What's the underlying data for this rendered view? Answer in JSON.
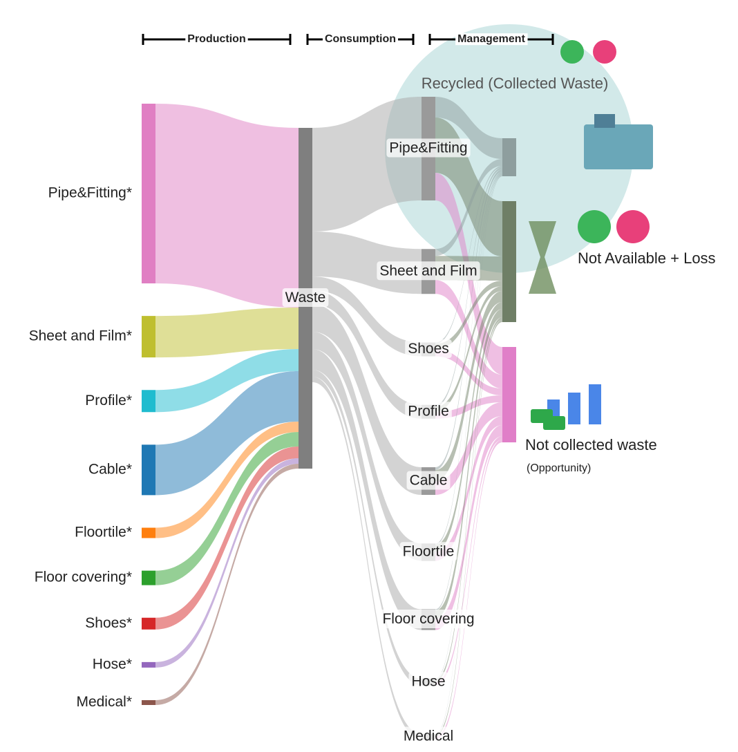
{
  "chart_data": {
    "type": "sankey",
    "stages": [
      "Production",
      "Consumption",
      "Management"
    ],
    "nodes": [
      {
        "name": "Pipe&Fitting*",
        "color": "#e07fc3"
      },
      {
        "name": "Sheet and Film*",
        "color": "#bfbf2f"
      },
      {
        "name": "Profile*",
        "color": "#1fbccf"
      },
      {
        "name": "Cable*",
        "color": "#1f78b4"
      },
      {
        "name": "Floortile*",
        "color": "#ff7f0e"
      },
      {
        "name": "Floor covering*",
        "color": "#2ca02c"
      },
      {
        "name": "Shoes*",
        "color": "#d62728"
      },
      {
        "name": "Hose*",
        "color": "#9467bd"
      },
      {
        "name": "Medical*",
        "color": "#8c564b"
      },
      {
        "name": "Waste",
        "color": "#7f7f7f"
      },
      {
        "name": "Pipe&Fitting",
        "color": "#9a9a9a"
      },
      {
        "name": "Sheet and Film",
        "color": "#9a9a9a"
      },
      {
        "name": "Shoes",
        "color": "#9a9a9a"
      },
      {
        "name": "Profile",
        "color": "#9a9a9a"
      },
      {
        "name": "Cable",
        "color": "#9a9a9a"
      },
      {
        "name": "Floortile",
        "color": "#9a9a9a"
      },
      {
        "name": "Floor covering",
        "color": "#9a9a9a"
      },
      {
        "name": "Hose",
        "color": "#9a9a9a"
      },
      {
        "name": "Medical",
        "color": "#9a9a9a"
      },
      {
        "name": "Recycled (Collected Waste)",
        "color": "#8e9e9e"
      },
      {
        "name": "Not Available + Loss",
        "color": "#6f7f66"
      },
      {
        "name": "Not collected waste",
        "color": "#e07fc8",
        "note": "(Opportunity)"
      }
    ],
    "links": [
      {
        "source": 0,
        "target": 9,
        "value": 260
      },
      {
        "source": 1,
        "target": 9,
        "value": 60
      },
      {
        "source": 2,
        "target": 9,
        "value": 32
      },
      {
        "source": 3,
        "target": 9,
        "value": 73
      },
      {
        "source": 4,
        "target": 9,
        "value": 15
      },
      {
        "source": 5,
        "target": 9,
        "value": 21
      },
      {
        "source": 6,
        "target": 9,
        "value": 17
      },
      {
        "source": 7,
        "target": 9,
        "value": 8
      },
      {
        "source": 8,
        "target": 9,
        "value": 7
      },
      {
        "source": 9,
        "target": 10,
        "value": 150
      },
      {
        "source": 9,
        "target": 11,
        "value": 65
      },
      {
        "source": 9,
        "target": 12,
        "value": 20
      },
      {
        "source": 9,
        "target": 13,
        "value": 20
      },
      {
        "source": 9,
        "target": 14,
        "value": 40
      },
      {
        "source": 9,
        "target": 15,
        "value": 25
      },
      {
        "source": 9,
        "target": 16,
        "value": 30
      },
      {
        "source": 9,
        "target": 17,
        "value": 10
      },
      {
        "source": 9,
        "target": 18,
        "value": 8
      },
      {
        "source": 10,
        "target": 19,
        "value": 30
      },
      {
        "source": 10,
        "target": 20,
        "value": 80
      },
      {
        "source": 10,
        "target": 21,
        "value": 40
      },
      {
        "source": 11,
        "target": 19,
        "value": 10
      },
      {
        "source": 11,
        "target": 20,
        "value": 35
      },
      {
        "source": 11,
        "target": 21,
        "value": 20
      },
      {
        "source": 12,
        "target": 19,
        "value": 2
      },
      {
        "source": 12,
        "target": 20,
        "value": 8
      },
      {
        "source": 12,
        "target": 21,
        "value": 10
      },
      {
        "source": 13,
        "target": 19,
        "value": 3
      },
      {
        "source": 13,
        "target": 20,
        "value": 7
      },
      {
        "source": 13,
        "target": 21,
        "value": 10
      },
      {
        "source": 14,
        "target": 19,
        "value": 4
      },
      {
        "source": 14,
        "target": 20,
        "value": 16
      },
      {
        "source": 14,
        "target": 21,
        "value": 20
      },
      {
        "source": 15,
        "target": 19,
        "value": 2
      },
      {
        "source": 15,
        "target": 20,
        "value": 10
      },
      {
        "source": 15,
        "target": 21,
        "value": 13
      },
      {
        "source": 16,
        "target": 19,
        "value": 2
      },
      {
        "source": 16,
        "target": 20,
        "value": 12
      },
      {
        "source": 16,
        "target": 21,
        "value": 16
      },
      {
        "source": 17,
        "target": 19,
        "value": 1
      },
      {
        "source": 17,
        "target": 20,
        "value": 4
      },
      {
        "source": 17,
        "target": 21,
        "value": 5
      },
      {
        "source": 18,
        "target": 19,
        "value": 1
      },
      {
        "source": 18,
        "target": 20,
        "value": 3
      },
      {
        "source": 18,
        "target": 21,
        "value": 4
      }
    ]
  }
}
